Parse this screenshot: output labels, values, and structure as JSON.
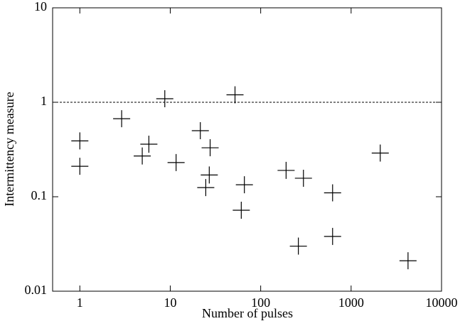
{
  "chart_data": {
    "type": "scatter",
    "xlabel": "Number of pulses",
    "ylabel": "Intermittency measure",
    "xscale": "log",
    "yscale": "log",
    "xlim": [
      0.5,
      10000
    ],
    "ylim": [
      0.01,
      10
    ],
    "xticks": [
      1,
      10,
      100,
      1000,
      10000
    ],
    "yticks": [
      0.01,
      0.1,
      1,
      10
    ],
    "hline": 1,
    "color": "#000000",
    "x": [
      1,
      1,
      2.9,
      4.9,
      5.8,
      8.7,
      11.6,
      21.5,
      27.6,
      27,
      24.7,
      52,
      66,
      61,
      191,
      297,
      261,
      624,
      624,
      2100,
      4260
    ],
    "values": [
      0.39,
      0.21,
      0.67,
      0.27,
      0.36,
      1.09,
      0.23,
      0.5,
      0.33,
      0.17,
      0.125,
      1.2,
      0.134,
      0.072,
      0.19,
      0.157,
      0.03,
      0.11,
      0.038,
      0.29,
      0.021
    ]
  }
}
